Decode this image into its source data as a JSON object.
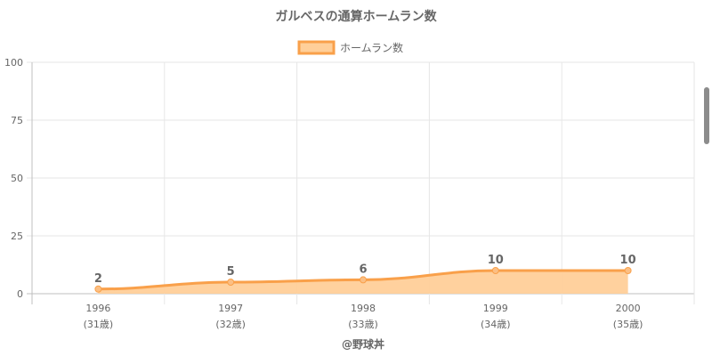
{
  "chart_data": {
    "type": "area",
    "title": "ガルベスの通算ホームラン数",
    "legend_position": "top",
    "series": [
      {
        "name": "ホームラン数",
        "values": [
          2,
          5,
          6,
          10,
          10
        ]
      }
    ],
    "x_labels": [
      "1996",
      "1997",
      "1998",
      "1999",
      "2000"
    ],
    "x_sublabels": [
      "(31歳)",
      "(32歳)",
      "(33歳)",
      "(34歳)",
      "(35歳)"
    ],
    "ylim": [
      0,
      100
    ],
    "yticks": [
      0,
      25,
      50,
      75,
      100
    ],
    "grid": true,
    "colors": {
      "line": "#f9a04a",
      "fill": "#ffcf99",
      "grid": "#e6e6e6",
      "axis": "#bfbfbf"
    }
  },
  "credit": "@野球丼"
}
